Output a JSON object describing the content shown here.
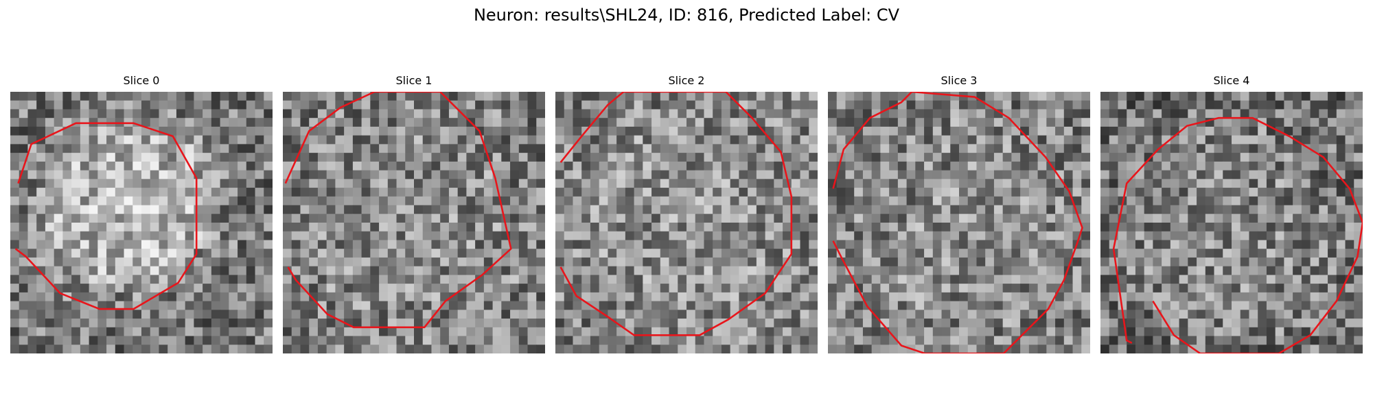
{
  "figure": {
    "title": "Neuron: results\\SHL24, ID: 816, Predicted Label: CV"
  },
  "slices": [
    {
      "title": "Slice 0",
      "seed": 11,
      "base": 140,
      "spread": 70,
      "blob_boost": 55,
      "blob": [
        0.45,
        0.43,
        0.32
      ],
      "contour": [
        [
          0.03,
          0.35
        ],
        [
          0.08,
          0.2
        ],
        [
          0.25,
          0.12
        ],
        [
          0.47,
          0.12
        ],
        [
          0.62,
          0.17
        ],
        [
          0.71,
          0.33
        ],
        [
          0.71,
          0.62
        ],
        [
          0.64,
          0.73
        ],
        [
          0.47,
          0.83
        ],
        [
          0.34,
          0.83
        ],
        [
          0.19,
          0.77
        ],
        [
          0.06,
          0.63
        ],
        [
          0.02,
          0.6
        ]
      ]
    },
    {
      "title": "Slice 1",
      "seed": 23,
      "base": 130,
      "spread": 70,
      "blob_boost": 12,
      "blob": [
        0.5,
        0.55,
        0.42
      ],
      "contour": [
        [
          0.01,
          0.35
        ],
        [
          0.1,
          0.15
        ],
        [
          0.22,
          0.06
        ],
        [
          0.35,
          0.0
        ],
        [
          0.6,
          0.0
        ],
        [
          0.75,
          0.15
        ],
        [
          0.81,
          0.33
        ],
        [
          0.87,
          0.6
        ],
        [
          0.76,
          0.7
        ],
        [
          0.62,
          0.8
        ],
        [
          0.54,
          0.9
        ],
        [
          0.45,
          0.9
        ],
        [
          0.27,
          0.9
        ],
        [
          0.17,
          0.85
        ],
        [
          0.05,
          0.72
        ],
        [
          0.02,
          0.67
        ]
      ]
    },
    {
      "title": "Slice 2",
      "seed": 37,
      "base": 135,
      "spread": 70,
      "blob_boost": 12,
      "blob": [
        0.5,
        0.5,
        0.42
      ],
      "contour": [
        [
          0.02,
          0.27
        ],
        [
          0.1,
          0.17
        ],
        [
          0.2,
          0.05
        ],
        [
          0.26,
          0.0
        ],
        [
          0.65,
          0.0
        ],
        [
          0.75,
          0.1
        ],
        [
          0.86,
          0.23
        ],
        [
          0.9,
          0.4
        ],
        [
          0.9,
          0.5
        ],
        [
          0.9,
          0.62
        ],
        [
          0.8,
          0.77
        ],
        [
          0.66,
          0.87
        ],
        [
          0.55,
          0.93
        ],
        [
          0.3,
          0.93
        ],
        [
          0.2,
          0.86
        ],
        [
          0.08,
          0.78
        ],
        [
          0.02,
          0.67
        ]
      ]
    },
    {
      "title": "Slice 3",
      "seed": 51,
      "base": 130,
      "spread": 70,
      "blob_boost": 12,
      "blob": [
        0.5,
        0.52,
        0.42
      ],
      "contour": [
        [
          0.02,
          0.37
        ],
        [
          0.06,
          0.22
        ],
        [
          0.16,
          0.1
        ],
        [
          0.28,
          0.04
        ],
        [
          0.32,
          0.0
        ],
        [
          0.56,
          0.02
        ],
        [
          0.69,
          0.1
        ],
        [
          0.83,
          0.25
        ],
        [
          0.92,
          0.38
        ],
        [
          0.97,
          0.52
        ],
        [
          0.95,
          0.58
        ],
        [
          0.9,
          0.72
        ],
        [
          0.84,
          0.83
        ],
        [
          0.67,
          1.0
        ],
        [
          0.67,
          1.0
        ],
        [
          0.37,
          1.0
        ],
        [
          0.28,
          0.97
        ],
        [
          0.15,
          0.82
        ],
        [
          0.05,
          0.63
        ],
        [
          0.02,
          0.57
        ]
      ]
    },
    {
      "title": "Slice 4",
      "seed": 67,
      "base": 120,
      "spread": 70,
      "blob_boost": 20,
      "blob": [
        0.5,
        0.55,
        0.42
      ],
      "contour": [
        [
          0.12,
          0.96
        ],
        [
          0.1,
          0.95
        ],
        [
          0.05,
          0.6
        ],
        [
          0.1,
          0.35
        ],
        [
          0.22,
          0.22
        ],
        [
          0.33,
          0.13
        ],
        [
          0.45,
          0.1
        ],
        [
          0.58,
          0.1
        ],
        [
          0.72,
          0.17
        ],
        [
          0.85,
          0.25
        ],
        [
          0.95,
          0.37
        ],
        [
          1.0,
          0.5
        ],
        [
          0.98,
          0.63
        ],
        [
          0.9,
          0.8
        ],
        [
          0.8,
          0.93
        ],
        [
          0.68,
          1.0
        ],
        [
          0.45,
          1.0
        ],
        [
          0.38,
          1.0
        ],
        [
          0.28,
          0.93
        ],
        [
          0.2,
          0.8
        ]
      ]
    }
  ],
  "colors": {
    "contour": "#e8151b",
    "background": "#ffffff"
  }
}
